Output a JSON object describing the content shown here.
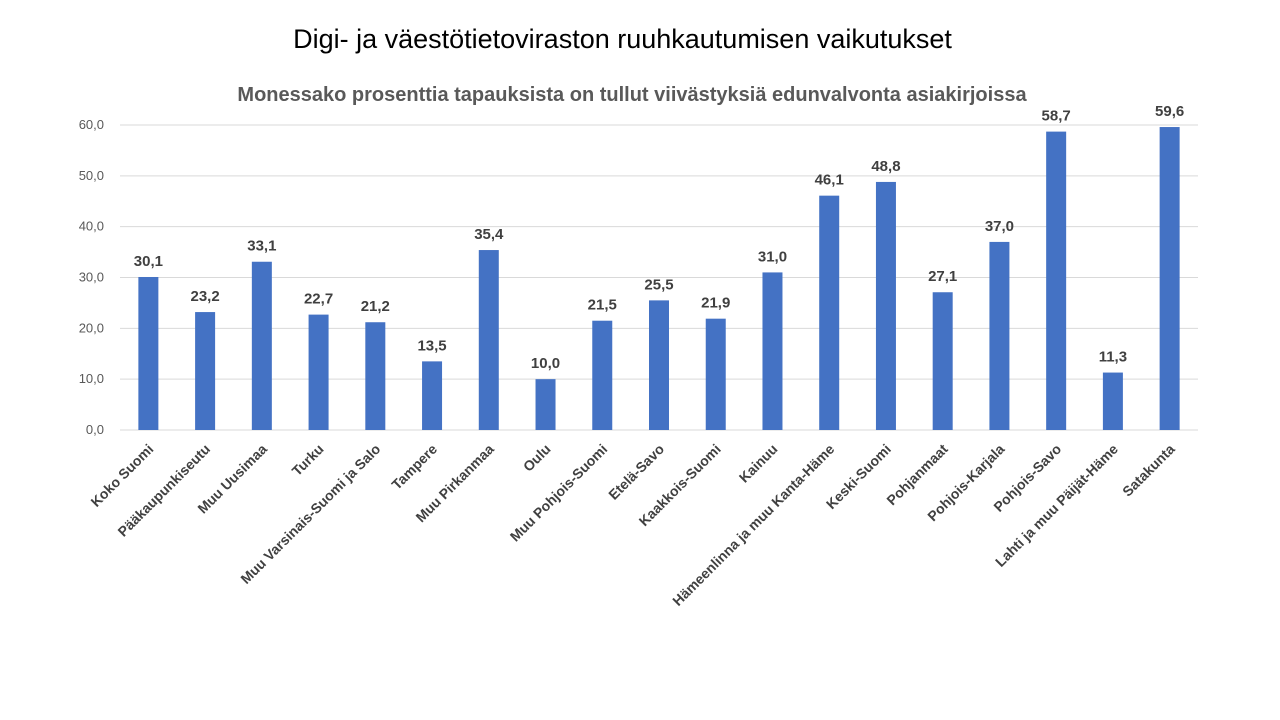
{
  "slide": {
    "title": "Digi- ja väestötietoviraston ruuhkautumisen vaikutukset"
  },
  "colors": {
    "bar": "#4472C4",
    "grid": "#D9D9D9",
    "text": "#404040"
  },
  "chart_data": {
    "type": "bar",
    "title": "Monessako prosenttia tapauksista on tullut viivästyksiä edunvalvonta asiakirjoissa",
    "xlabel": "",
    "ylabel": "",
    "ylim": [
      0,
      60
    ],
    "yticks": [
      "0,0",
      "10,0",
      "20,0",
      "30,0",
      "40,0",
      "50,0",
      "60,0"
    ],
    "grid": true,
    "legend": "none",
    "categories": [
      "Koko Suomi",
      "Pääkaupunkiseutu",
      "Muu Uusimaa",
      "Turku",
      "Muu Varsinais-Suomi ja Salo",
      "Tampere",
      "Muu Pirkanmaa",
      "Oulu",
      "Muu Pohjois-Suomi",
      "Etelä-Savo",
      "Kaakkois-Suomi",
      "Kainuu",
      "Hämeenlinna ja muu Kanta-Häme",
      "Keski-Suomi",
      "Pohjanmaat",
      "Pohjois-Karjala",
      "Pohjois-Savo",
      "Lahti ja muu Päijät-Häme",
      "Satakunta"
    ],
    "values": [
      30.1,
      23.2,
      33.1,
      22.7,
      21.2,
      13.5,
      35.4,
      10.0,
      21.5,
      25.5,
      21.9,
      31.0,
      46.1,
      48.8,
      27.1,
      37.0,
      58.7,
      11.3,
      59.6
    ],
    "data_labels": [
      "30,1",
      "23,2",
      "33,1",
      "22,7",
      "21,2",
      "13,5",
      "35,4",
      "10,0",
      "21,5",
      "25,5",
      "21,9",
      "31,0",
      "46,1",
      "48,8",
      "27,1",
      "37,0",
      "58,7",
      "11,3",
      "59,6"
    ]
  }
}
